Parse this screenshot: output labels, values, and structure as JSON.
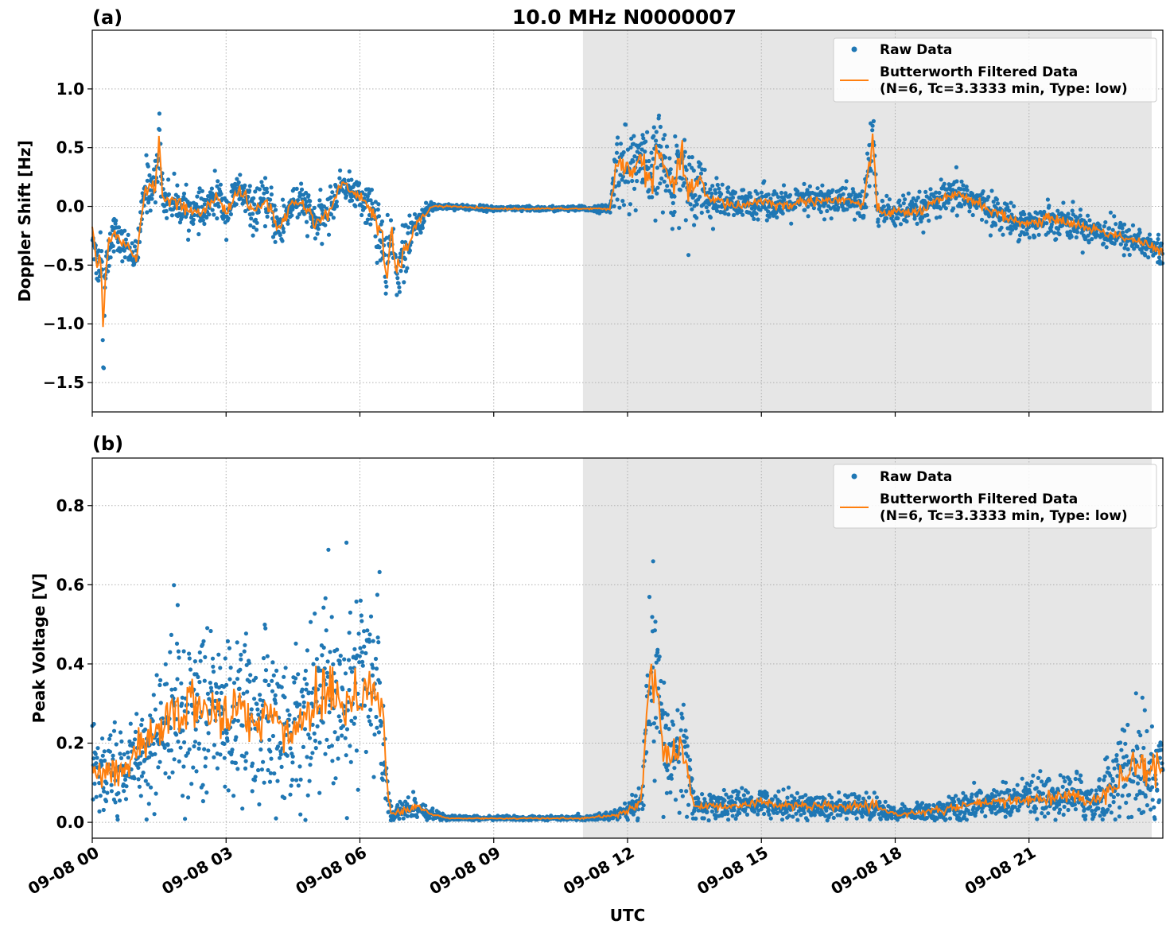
{
  "figure": {
    "title": "10.0 MHz N0000007",
    "xlabel": "UTC"
  },
  "colors": {
    "raw": "#1f77b4",
    "filtered": "#ff7f0e",
    "night_shade": "#e6e6e6",
    "grid": "#b0b0b0"
  },
  "chart_data": [
    {
      "type": "scatter",
      "panel_label": "(a)",
      "ylabel": "Doppler Shift [Hz]",
      "xlim_hours": [
        0,
        24
      ],
      "ylim": [
        -1.75,
        1.5
      ],
      "yticks": [
        -1.5,
        -1.0,
        -0.5,
        0.0,
        0.5,
        1.0
      ],
      "ytick_labels": [
        "−1.5",
        "−1.0",
        "−0.5",
        "0.0",
        "0.5",
        "1.0"
      ],
      "xticks_hours": [
        0,
        3,
        6,
        9,
        12,
        15,
        18,
        21
      ],
      "xtick_labels": [
        "09-08 00",
        "09-08 03",
        "09-08 06",
        "09-08 09",
        "09-08 12",
        "09-08 15",
        "09-08 18",
        "09-08 21"
      ],
      "shaded_region_hours": [
        11.0,
        23.75
      ],
      "grid": true,
      "legend_position": "top-right",
      "series": [
        {
          "name": "Raw Data",
          "kind": "points"
        },
        {
          "name": "Butterworth Filtered Data\n(N=6, Tc=3.3333 min, Type: low)",
          "kind": "line"
        }
      ],
      "filtered_profile": {
        "x_hours": [
          0.0,
          0.1,
          0.2,
          0.25,
          0.3,
          0.4,
          0.5,
          0.6,
          0.8,
          1.0,
          1.1,
          1.2,
          1.4,
          1.5,
          1.6,
          1.8,
          2.0,
          2.3,
          2.5,
          2.8,
          3.0,
          3.3,
          3.6,
          3.9,
          4.2,
          4.5,
          4.8,
          5.0,
          5.3,
          5.6,
          5.9,
          6.1,
          6.3,
          6.5,
          6.6,
          6.7,
          6.8,
          7.0,
          7.2,
          7.4,
          7.6,
          8.0,
          9.0,
          10.0,
          11.0,
          11.6,
          11.7,
          11.8,
          12.0,
          12.3,
          12.5,
          12.7,
          13.0,
          13.2,
          13.4,
          13.6,
          13.8,
          14.0,
          14.5,
          15.0,
          15.5,
          16.0,
          16.5,
          17.0,
          17.3,
          17.5,
          17.6,
          18.0,
          18.5,
          19.0,
          19.5,
          20.0,
          20.5,
          21.0,
          21.5,
          22.0,
          22.5,
          23.0,
          23.5,
          23.75,
          24.0
        ],
        "y": [
          -0.2,
          -0.5,
          -0.4,
          -1.0,
          -0.5,
          -0.3,
          -0.2,
          -0.3,
          -0.35,
          -0.45,
          -0.1,
          0.2,
          0.15,
          0.55,
          0.05,
          0.05,
          0.0,
          -0.05,
          -0.05,
          0.1,
          -0.05,
          0.15,
          -0.05,
          0.05,
          -0.2,
          0.05,
          0.0,
          -0.15,
          -0.05,
          0.2,
          0.1,
          0.05,
          -0.05,
          -0.3,
          -0.65,
          -0.2,
          -0.55,
          -0.4,
          -0.2,
          -0.1,
          0.0,
          0.0,
          -0.02,
          -0.02,
          -0.02,
          -0.02,
          0.2,
          0.4,
          0.3,
          0.4,
          0.2,
          0.45,
          0.15,
          0.4,
          0.1,
          0.25,
          0.05,
          0.05,
          0.0,
          0.05,
          0.0,
          0.05,
          0.05,
          0.05,
          0.0,
          0.6,
          -0.05,
          -0.05,
          -0.05,
          0.05,
          0.1,
          0.0,
          -0.1,
          -0.15,
          -0.1,
          -0.15,
          -0.2,
          -0.25,
          -0.3,
          -0.35,
          -0.4
        ],
        "spread": [
          0.12,
          0.15,
          0.3,
          0.5,
          0.3,
          0.15,
          0.12,
          0.12,
          0.12,
          0.12,
          0.15,
          0.2,
          0.2,
          0.25,
          0.15,
          0.15,
          0.15,
          0.12,
          0.15,
          0.15,
          0.15,
          0.15,
          0.15,
          0.15,
          0.2,
          0.15,
          0.15,
          0.15,
          0.15,
          0.1,
          0.12,
          0.15,
          0.2,
          0.3,
          0.3,
          0.2,
          0.25,
          0.2,
          0.15,
          0.08,
          0.04,
          0.02,
          0.02,
          0.02,
          0.02,
          0.03,
          0.25,
          0.35,
          0.3,
          0.3,
          0.3,
          0.35,
          0.3,
          0.35,
          0.3,
          0.25,
          0.15,
          0.15,
          0.12,
          0.12,
          0.12,
          0.12,
          0.12,
          0.12,
          0.15,
          0.3,
          0.12,
          0.12,
          0.12,
          0.12,
          0.15,
          0.12,
          0.12,
          0.12,
          0.12,
          0.12,
          0.12,
          0.12,
          0.12,
          0.12,
          0.12
        ]
      }
    },
    {
      "type": "scatter",
      "panel_label": "(b)",
      "ylabel": "Peak Voltage [V]",
      "xlim_hours": [
        0,
        24
      ],
      "ylim": [
        -0.04,
        0.92
      ],
      "yticks": [
        0.0,
        0.2,
        0.4,
        0.6,
        0.8
      ],
      "ytick_labels": [
        "0.0",
        "0.2",
        "0.4",
        "0.6",
        "0.8"
      ],
      "xticks_hours": [
        0,
        3,
        6,
        9,
        12,
        15,
        18,
        21
      ],
      "xtick_labels": [
        "09-08 00",
        "09-08 03",
        "09-08 06",
        "09-08 09",
        "09-08 12",
        "09-08 15",
        "09-08 18",
        "09-08 21"
      ],
      "shaded_region_hours": [
        11.0,
        23.75
      ],
      "grid": true,
      "legend_position": "top-right",
      "series": [
        {
          "name": "Raw Data",
          "kind": "points"
        },
        {
          "name": "Butterworth Filtered Data\n(N=6, Tc=3.3333 min, Type: low)",
          "kind": "line"
        }
      ],
      "filtered_profile": {
        "x_hours": [
          0.0,
          0.3,
          0.5,
          0.8,
          1.0,
          1.3,
          1.6,
          2.0,
          2.3,
          2.6,
          3.0,
          3.3,
          3.6,
          4.0,
          4.3,
          4.6,
          5.0,
          5.3,
          5.6,
          5.9,
          6.2,
          6.5,
          6.6,
          6.7,
          6.8,
          7.0,
          7.3,
          7.6,
          8.0,
          9.0,
          10.0,
          11.0,
          11.5,
          11.8,
          12.0,
          12.3,
          12.5,
          12.6,
          12.8,
          13.0,
          13.2,
          13.3,
          13.5,
          14.0,
          15.0,
          16.0,
          17.0,
          17.5,
          18.0,
          19.0,
          20.0,
          20.5,
          21.0,
          21.5,
          22.0,
          22.5,
          23.0,
          23.5,
          24.0
        ],
        "y": [
          0.15,
          0.12,
          0.14,
          0.13,
          0.18,
          0.2,
          0.25,
          0.3,
          0.28,
          0.3,
          0.25,
          0.3,
          0.25,
          0.28,
          0.22,
          0.25,
          0.3,
          0.35,
          0.3,
          0.32,
          0.35,
          0.3,
          0.1,
          0.02,
          0.02,
          0.03,
          0.04,
          0.02,
          0.01,
          0.01,
          0.01,
          0.01,
          0.015,
          0.02,
          0.03,
          0.05,
          0.35,
          0.4,
          0.2,
          0.15,
          0.2,
          0.15,
          0.04,
          0.04,
          0.05,
          0.04,
          0.04,
          0.04,
          0.02,
          0.03,
          0.05,
          0.05,
          0.06,
          0.06,
          0.07,
          0.05,
          0.12,
          0.15,
          0.13
        ],
        "spread": [
          0.1,
          0.1,
          0.1,
          0.1,
          0.12,
          0.14,
          0.16,
          0.2,
          0.18,
          0.2,
          0.18,
          0.2,
          0.18,
          0.18,
          0.16,
          0.18,
          0.2,
          0.25,
          0.22,
          0.22,
          0.22,
          0.2,
          0.06,
          0.02,
          0.02,
          0.03,
          0.03,
          0.01,
          0.005,
          0.005,
          0.005,
          0.005,
          0.008,
          0.015,
          0.02,
          0.04,
          0.2,
          0.22,
          0.15,
          0.12,
          0.15,
          0.12,
          0.03,
          0.03,
          0.03,
          0.03,
          0.03,
          0.03,
          0.015,
          0.025,
          0.035,
          0.04,
          0.04,
          0.05,
          0.05,
          0.05,
          0.1,
          0.14,
          0.13
        ]
      }
    }
  ]
}
